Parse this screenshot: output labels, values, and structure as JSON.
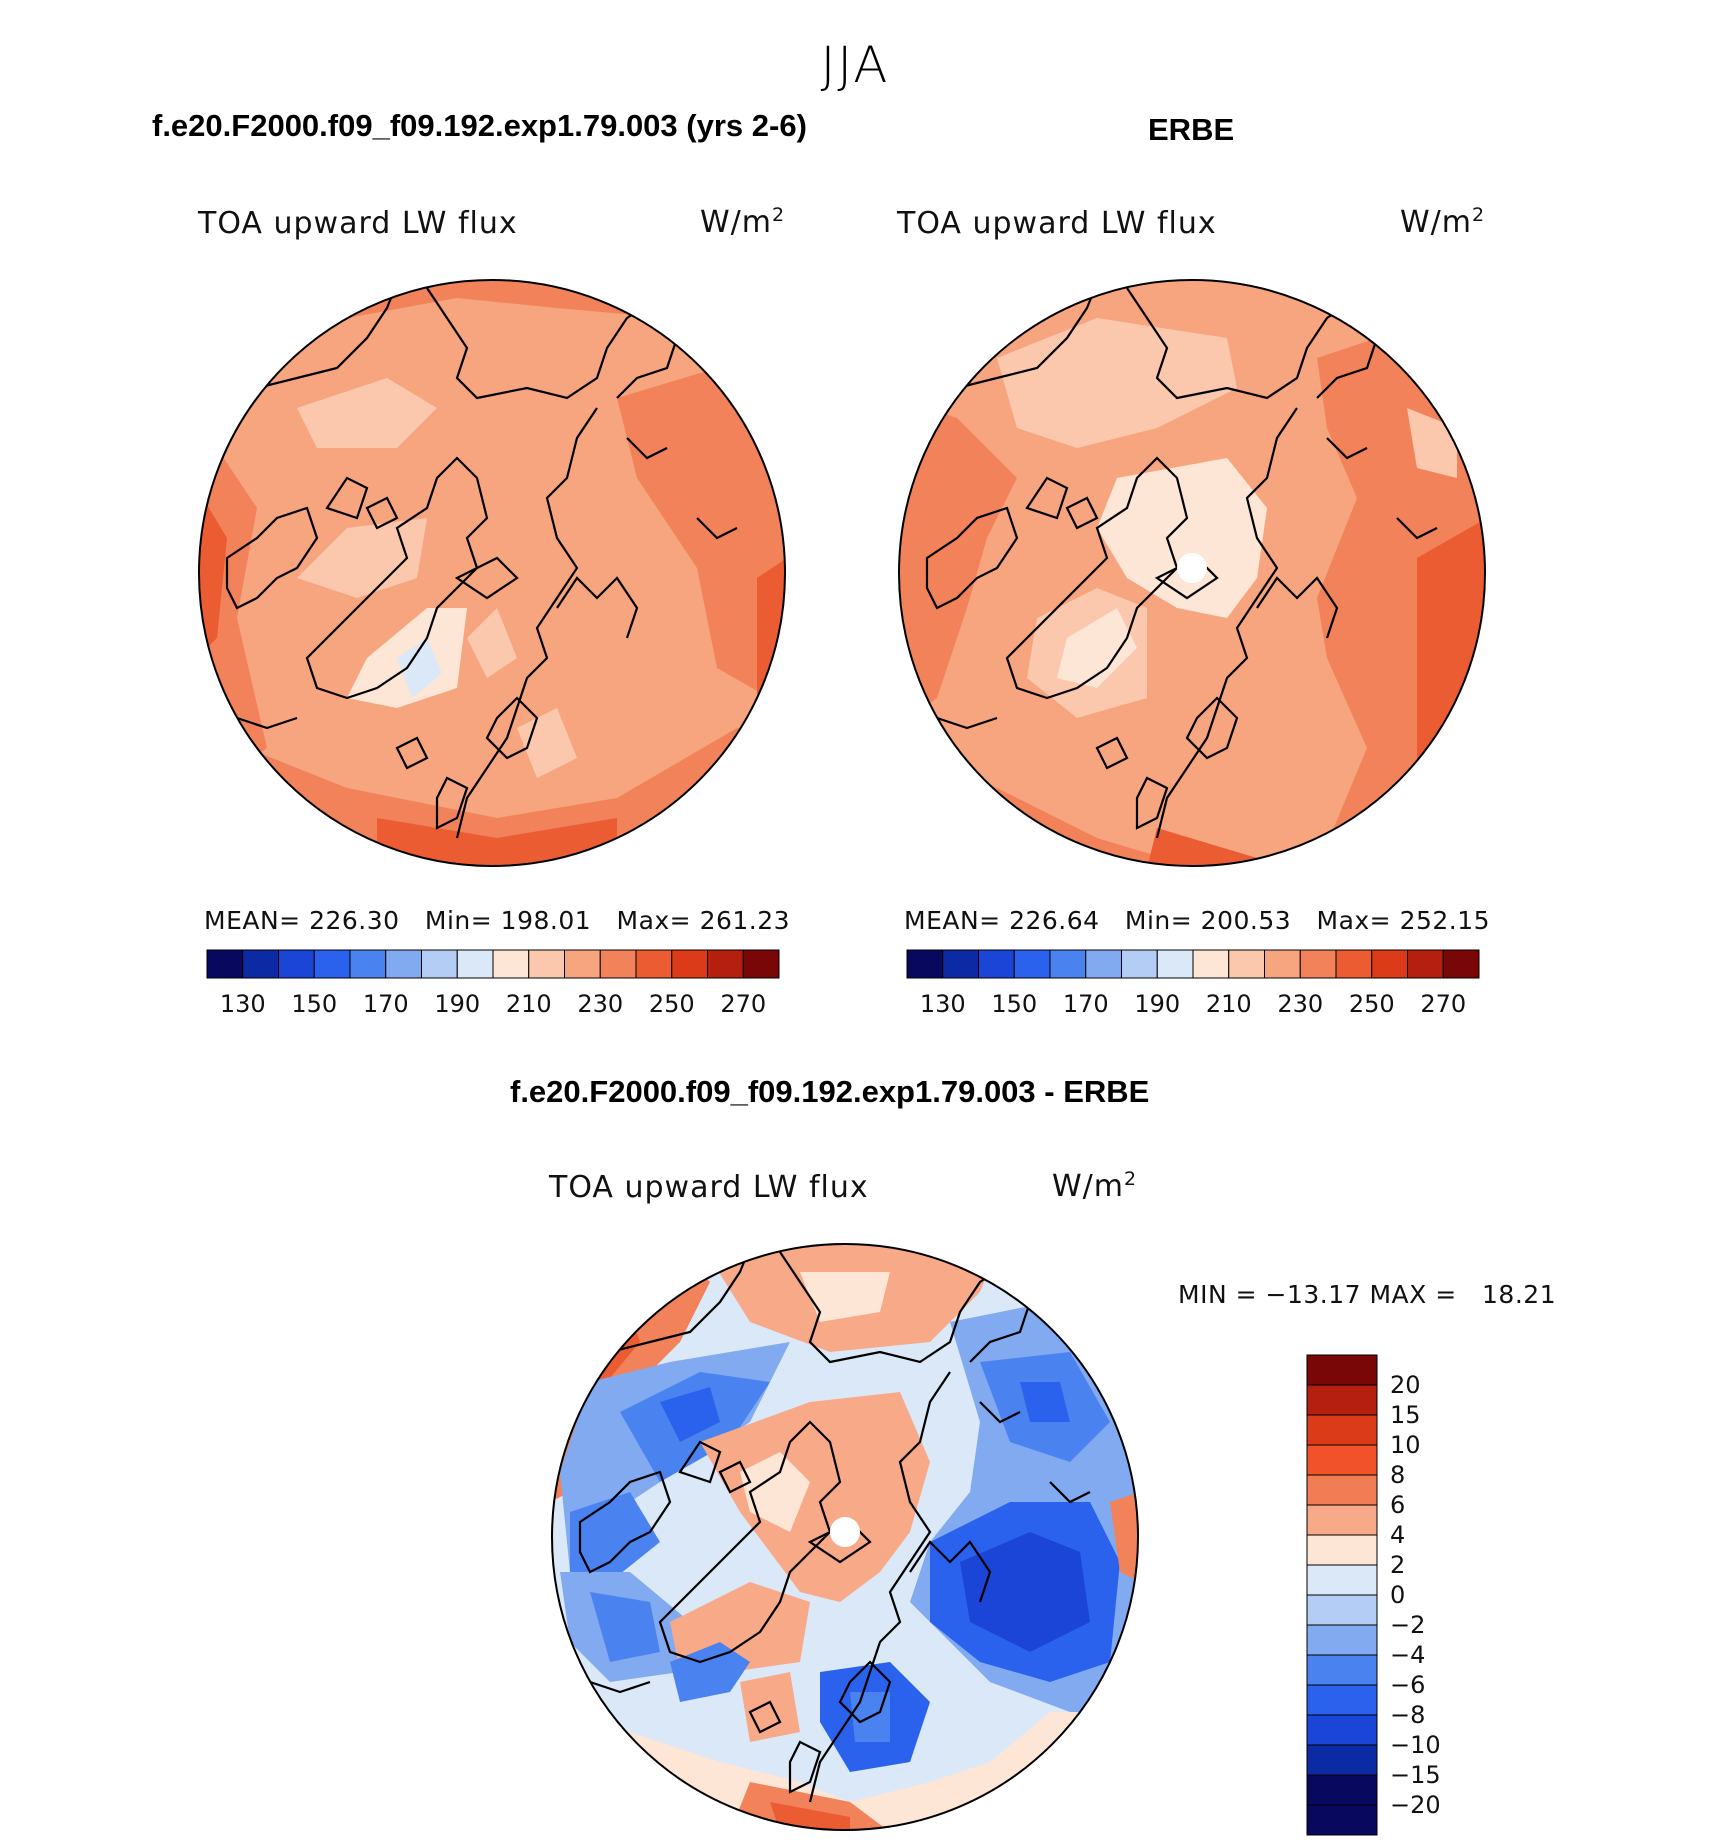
{
  "figure": {
    "season": "JJA",
    "colors": {
      "coastline": "#000000",
      "background": "#ffffff"
    }
  },
  "panels": [
    {
      "title": "f.e20.F2000.f09_f09.192.exp1.79.003 (yrs 2-6)",
      "variable": "TOA upward LW flux",
      "units": "W/m",
      "units_exponent": "2",
      "stats": {
        "mean_label": "MEAN=",
        "mean": "226.30",
        "min_label": "Min=",
        "min": "198.01",
        "max_label": "Max=",
        "max": "261.23"
      },
      "pole_hole": false
    },
    {
      "title": "ERBE",
      "variable": "TOA upward LW flux",
      "units": "W/m",
      "units_exponent": "2",
      "stats": {
        "mean_label": "MEAN=",
        "mean": "226.64",
        "min_label": "Min=",
        "min": "200.53",
        "max_label": "Max=",
        "max": "252.15"
      },
      "pole_hole": true
    },
    {
      "title": "f.e20.F2000.f09_f09.192.exp1.79.003 - ERBE",
      "variable": "TOA upward LW flux",
      "units": "W/m",
      "units_exponent": "2",
      "stats": {
        "min_label": "MIN =",
        "min": "−13.17",
        "max_label": "MAX =",
        "max": "18.21"
      },
      "pole_hole": true
    }
  ],
  "colorbar_abs": {
    "tick_labels": [
      "130",
      "150",
      "170",
      "190",
      "210",
      "230",
      "250",
      "270"
    ],
    "colors": [
      "#08085e",
      "#0c2aa3",
      "#1a45d6",
      "#2a62ee",
      "#4a82f0",
      "#82aaf0",
      "#b4cdf4",
      "#dae8f8",
      "#fde6d6",
      "#fbc8ae",
      "#f7a57f",
      "#f2825a",
      "#ec5c33",
      "#db3b18",
      "#b51f10",
      "#7a0707"
    ]
  },
  "colorbar_diff": {
    "levels": [
      "20",
      "15",
      "10",
      "8",
      "6",
      "4",
      "2",
      "0",
      "−2",
      "−4",
      "−6",
      "−8",
      "−10",
      "−15",
      "−20"
    ],
    "colors": [
      "#7a0707",
      "#b51f10",
      "#db3b18",
      "#f2522a",
      "#f27d55",
      "#f8a988",
      "#fde6d6",
      "#dae8f8",
      "#b4cdf4",
      "#82aaf0",
      "#4a82f0",
      "#2a62ee",
      "#1a45d6",
      "#0c2aa3",
      "#08085e",
      "#08085e"
    ]
  }
}
